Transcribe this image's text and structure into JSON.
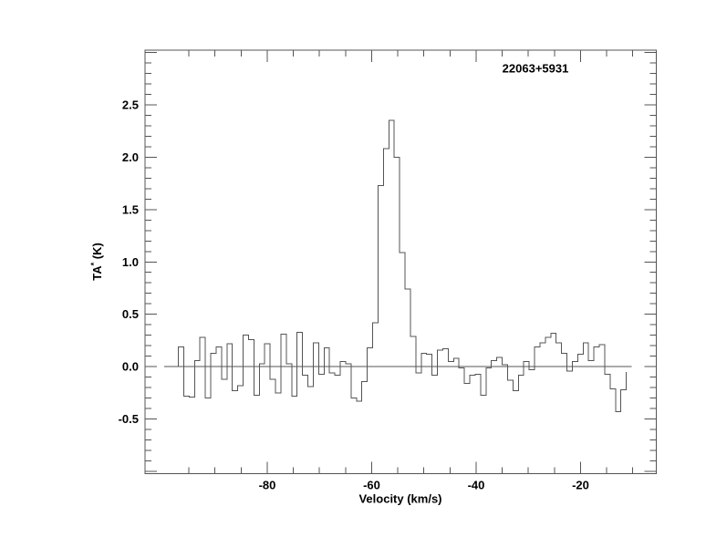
{
  "source_label": "22063+5931",
  "axes": {
    "xlabel": "Velocity (km/s)",
    "ylabel_main": "TA",
    "ylabel_sup": "*",
    "ylabel_unit": " (K)"
  },
  "colors": {
    "background": "#ffffff",
    "plot_line": "#545454",
    "axis_line": "#545454",
    "text": "#000000"
  },
  "chart_data": {
    "type": "line",
    "subtype": "histogram-step-spectrum",
    "title": "22063+5931",
    "xlabel": "Velocity (km/s)",
    "ylabel": "TA* (K)",
    "xlim": [
      -103.4,
      -5.5
    ],
    "ylim": [
      -1.02,
      3.02
    ],
    "grid": false,
    "legend": "none",
    "x_tick_labels": [
      {
        "v": -80,
        "label": "-80"
      },
      {
        "v": -60,
        "label": "-60"
      },
      {
        "v": -40,
        "label": "-40"
      },
      {
        "v": -20,
        "label": "-20"
      }
    ],
    "x_minor_tick_start": -95,
    "x_minor_tick_end": -10,
    "x_minor_tick_step": 5,
    "y_tick_labels": [
      {
        "v": -0.5,
        "label": "-0.5"
      },
      {
        "v": 0.0,
        "label": "0.0"
      },
      {
        "v": 0.5,
        "label": "0.5"
      },
      {
        "v": 1.0,
        "label": "1.0"
      },
      {
        "v": 1.5,
        "label": "1.5"
      },
      {
        "v": 2.0,
        "label": "2.0"
      },
      {
        "v": 2.5,
        "label": "2.5"
      }
    ],
    "y_minor_tick_step": 0.1,
    "y_major_tick_step": 0.5,
    "baseline": {
      "y": 0.0,
      "x_start": -99.7,
      "x_end": -10.2
    },
    "peak": {
      "velocity": -56.2,
      "value": 2.35
    },
    "channel_width_kms": 1.04,
    "series": [
      {
        "name": "spectrum",
        "x": [
          -96.5,
          -95.5,
          -94.4,
          -93.4,
          -92.4,
          -91.3,
          -90.3,
          -89.3,
          -88.2,
          -87.2,
          -86.2,
          -85.1,
          -84.1,
          -83.1,
          -82.0,
          -81.0,
          -80.0,
          -78.9,
          -77.9,
          -76.9,
          -75.8,
          -74.8,
          -73.8,
          -72.7,
          -71.7,
          -70.7,
          -69.6,
          -68.6,
          -67.6,
          -66.5,
          -65.5,
          -64.5,
          -63.4,
          -62.4,
          -61.4,
          -60.3,
          -59.3,
          -58.3,
          -57.2,
          -56.2,
          -55.2,
          -54.1,
          -53.1,
          -52.1,
          -51.0,
          -50.0,
          -49.0,
          -47.9,
          -46.9,
          -45.9,
          -44.8,
          -43.8,
          -42.8,
          -41.7,
          -40.7,
          -39.7,
          -38.6,
          -37.6,
          -36.6,
          -35.5,
          -34.5,
          -33.5,
          -32.4,
          -31.4,
          -30.4,
          -29.3,
          -28.3,
          -27.3,
          -26.2,
          -25.2,
          -24.2,
          -23.1,
          -22.1,
          -21.1,
          -20.0,
          -19.0,
          -18.0,
          -16.9,
          -15.9,
          -14.9,
          -13.8,
          -12.8,
          -11.8
        ],
        "values": [
          0.19,
          -0.28,
          -0.29,
          0.06,
          0.28,
          -0.3,
          0.13,
          0.19,
          -0.12,
          0.22,
          -0.23,
          -0.18,
          0.3,
          0.26,
          -0.27,
          0.03,
          0.22,
          -0.12,
          -0.25,
          0.31,
          0.03,
          -0.28,
          0.33,
          -0.08,
          -0.19,
          0.23,
          -0.07,
          0.18,
          -0.06,
          -0.08,
          0.05,
          0.03,
          -0.3,
          -0.33,
          -0.14,
          0.18,
          0.42,
          1.73,
          2.08,
          2.35,
          2.0,
          1.09,
          0.74,
          0.29,
          -0.06,
          0.13,
          0.12,
          -0.08,
          0.16,
          0.17,
          0.05,
          0.08,
          -0.01,
          -0.16,
          -0.08,
          -0.07,
          -0.27,
          -0.01,
          0.06,
          0.09,
          0.02,
          -0.13,
          -0.23,
          -0.08,
          0.05,
          -0.03,
          0.19,
          0.23,
          0.28,
          0.32,
          0.23,
          0.13,
          -0.04,
          0.05,
          0.12,
          0.23,
          0.06,
          0.19,
          0.21,
          -0.07,
          -0.21,
          -0.43,
          -0.22
        ]
      }
    ]
  }
}
